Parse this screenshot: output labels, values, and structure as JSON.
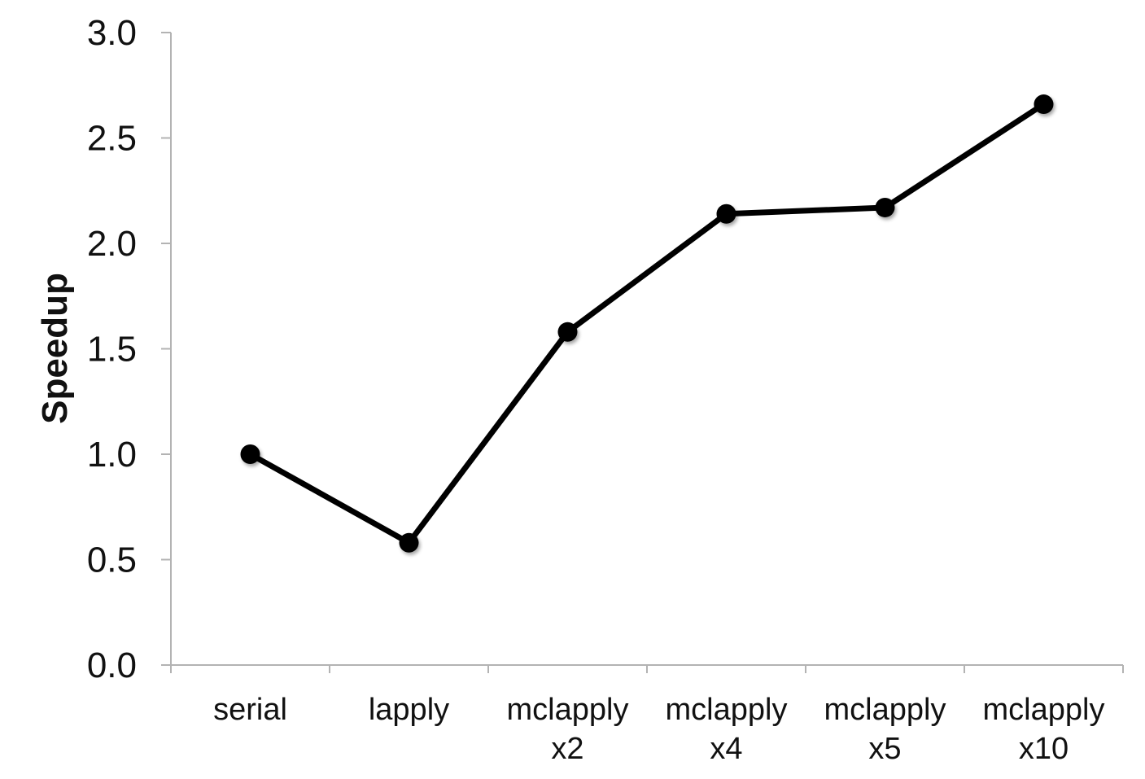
{
  "chart_data": {
    "type": "line",
    "title": "",
    "xlabel": "",
    "ylabel": "Speedup",
    "ylim": [
      0,
      3
    ],
    "yticks": [
      "0.0",
      "0.5",
      "1.0",
      "1.5",
      "2.0",
      "2.5",
      "3.0"
    ],
    "categories": [
      [
        "serial"
      ],
      [
        "lapply"
      ],
      [
        "mclapply",
        "x2"
      ],
      [
        "mclapply",
        "x4"
      ],
      [
        "mclapply",
        "x5"
      ],
      [
        "mclapply",
        "x10"
      ]
    ],
    "series": [
      {
        "values": [
          1.0,
          0.58,
          1.58,
          2.14,
          2.17,
          2.66
        ],
        "color": "#000000"
      }
    ],
    "grid": false,
    "legend": "none"
  }
}
